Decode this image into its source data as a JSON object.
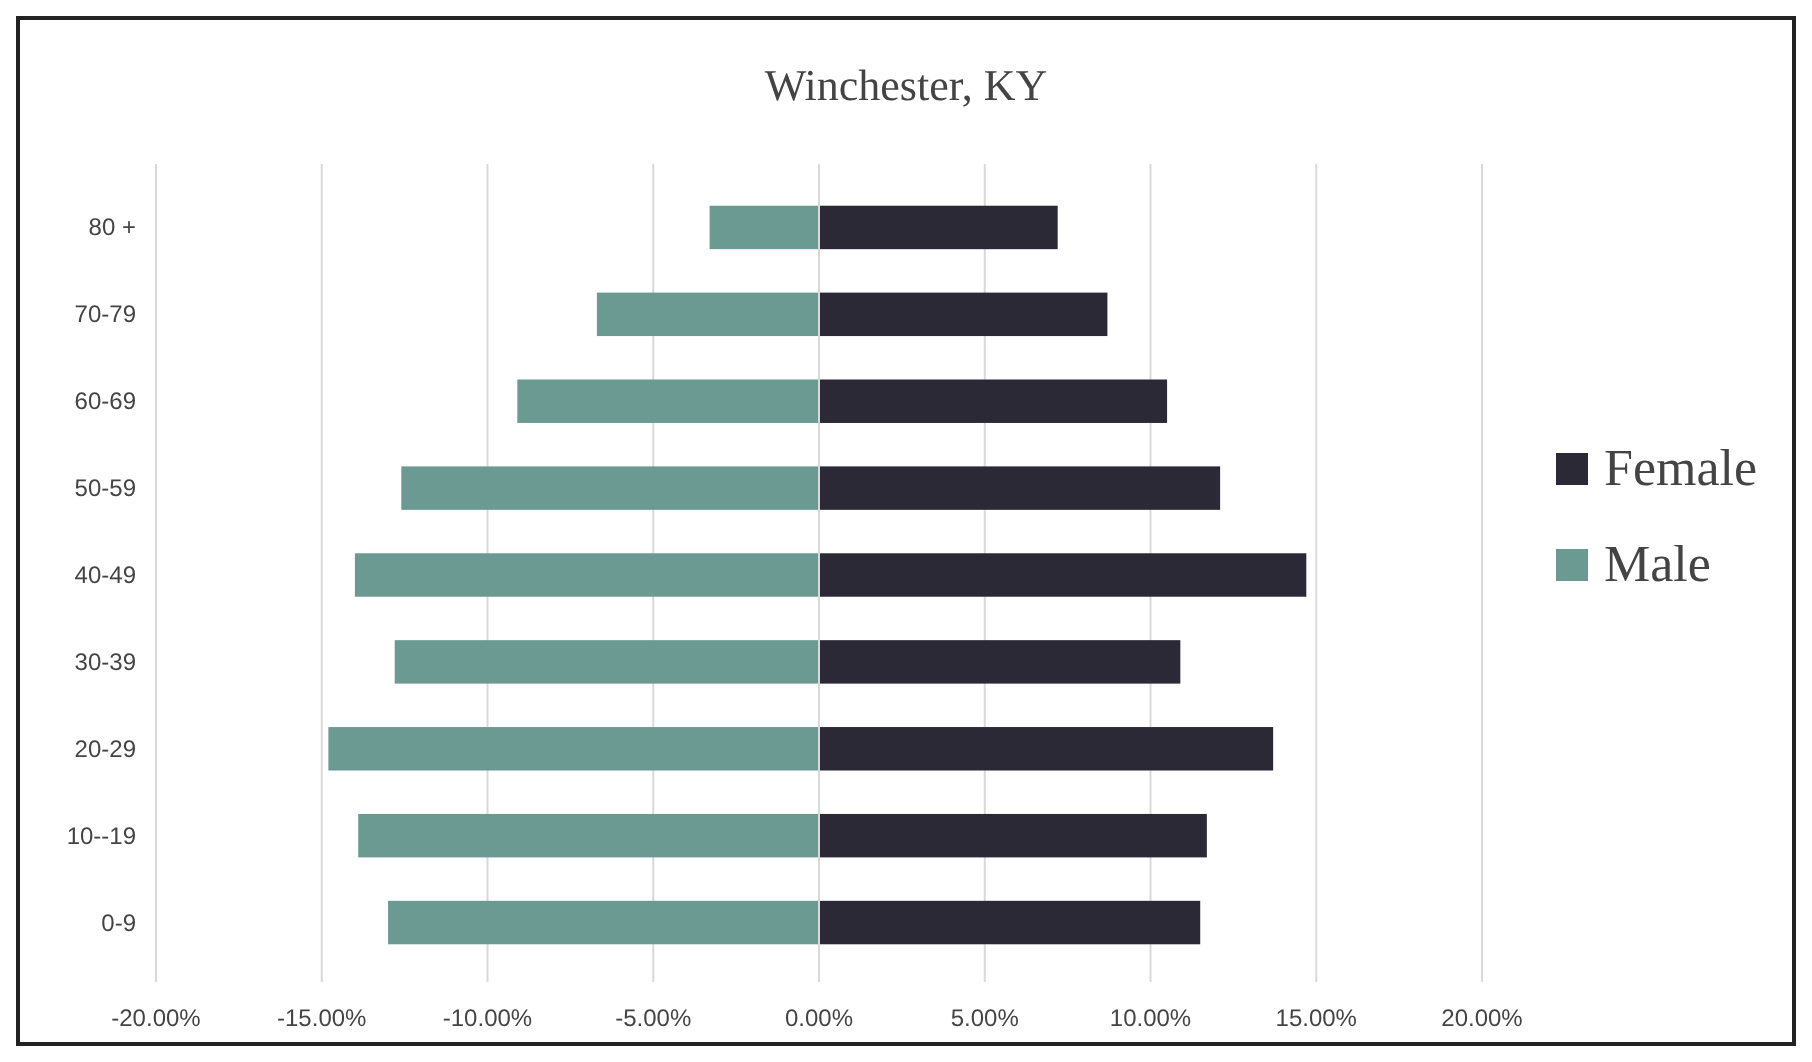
{
  "chart_data": {
    "type": "bar",
    "title": "Winchester, KY",
    "orientation": "horizontal",
    "stacked": true,
    "categories": [
      "80 +",
      "70-79",
      "60-69",
      "50-59",
      "40-49",
      "30-39",
      "20-29",
      "10--19",
      "0-9"
    ],
    "series": [
      {
        "name": "Female",
        "color": "#2b2935",
        "values": [
          7.2,
          8.7,
          10.5,
          12.1,
          14.7,
          10.9,
          13.7,
          11.7,
          11.5
        ]
      },
      {
        "name": "Male",
        "color": "#6a9a92",
        "values": [
          -3.3,
          -6.7,
          -9.1,
          -12.6,
          -14.0,
          -12.8,
          -14.8,
          -13.9,
          -13.0
        ]
      }
    ],
    "xlim": [
      -20,
      20
    ],
    "xticks": [
      {
        "value": -20,
        "label": "-20.00%"
      },
      {
        "value": -15,
        "label": "-15.00%"
      },
      {
        "value": -10,
        "label": "-10.00%"
      },
      {
        "value": -5,
        "label": "-5.00%"
      },
      {
        "value": 0,
        "label": "0.00%"
      },
      {
        "value": 5,
        "label": "5.00%"
      },
      {
        "value": 10,
        "label": "10.00%"
      },
      {
        "value": 15,
        "label": "15.00%"
      },
      {
        "value": 20,
        "label": "20.00%"
      }
    ],
    "grid": "x",
    "legend": "right"
  }
}
